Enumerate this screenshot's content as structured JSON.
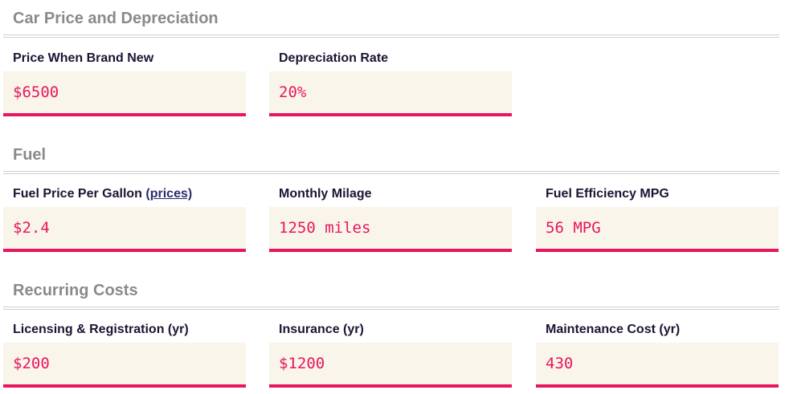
{
  "sections": [
    {
      "title": "Car Price and Depreciation",
      "fields": [
        {
          "label": "Price When Brand New",
          "value": "$6500"
        },
        {
          "label": "Depreciation Rate",
          "value": "20%"
        }
      ]
    },
    {
      "title": "Fuel",
      "fields": [
        {
          "label": "Fuel Price Per Gallon",
          "link": "(prices)",
          "value": "$2.4"
        },
        {
          "label": "Monthly Milage",
          "value": "1250 miles"
        },
        {
          "label": "Fuel Efficiency MPG",
          "value": "56 MPG"
        }
      ]
    },
    {
      "title": "Recurring Costs",
      "fields": [
        {
          "label": "Licensing & Registration (yr)",
          "value": "$200"
        },
        {
          "label": "Insurance (yr)",
          "value": "$1200"
        },
        {
          "label": "Maintenance Cost (yr)",
          "value": "430"
        }
      ]
    }
  ],
  "colors": {
    "accent": "#e8175d",
    "field_background": "#faf5eb",
    "section_title": "#8a8a8a",
    "label": "#1f1333"
  }
}
